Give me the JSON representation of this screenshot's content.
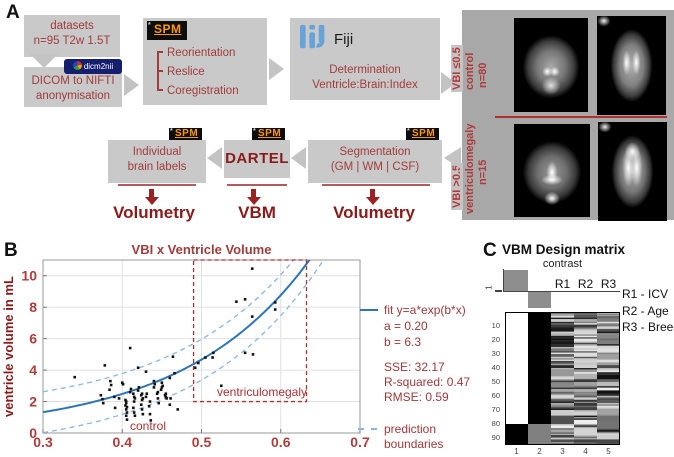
{
  "figure": {
    "panel_a_label": "A",
    "panel_b_label": "B",
    "panel_c_label": "C"
  },
  "pipeline": {
    "datasets": {
      "line1": "datasets",
      "line2": "n=95 T2w 1.5T"
    },
    "dicom": {
      "badge": "dicm2nii",
      "line1": "DICOM to NIFTI",
      "line2": "anonymisation"
    },
    "spm_logo": "SPM",
    "preprocess_steps": [
      "Reorientation",
      "Reslice",
      "Coregistration"
    ],
    "fiji": {
      "logo_text": "Fiji",
      "line1": "Determination",
      "line2": "Ventricle:Brain:Index"
    },
    "individual": {
      "line1": "Individual",
      "line2": "brain labels"
    },
    "dartel": "DARTEL",
    "segmentation": {
      "line1": "Segmentation",
      "line2": "(GM | WM | CSF)"
    },
    "outputs": [
      "Volumetry",
      "VBM",
      "Volumetry"
    ]
  },
  "mri_panel": {
    "top": {
      "vbi": "VBI ≤0.5",
      "group": "control",
      "n": "n=80"
    },
    "bottom": {
      "vbi": "VBI >0.5",
      "group": "ventriculomegaly",
      "n": "n=15"
    }
  },
  "chart_data": [
    {
      "id": "vbi-ventricle-scatter",
      "type": "scatter",
      "title": "VBI x Ventricle Volume",
      "xlabel": "",
      "ylabel": "ventricle volume in mL",
      "xlim": [
        0.3,
        0.7
      ],
      "ylim": [
        0,
        11
      ],
      "xticks": [
        0.3,
        0.4,
        0.5,
        0.6,
        0.7
      ],
      "yticks": [
        0,
        2,
        4,
        6,
        8,
        10
      ],
      "grid": true,
      "fit": {
        "a": 0.2,
        "b": 6.3
      },
      "boundary_offset": 1.3,
      "legend": {
        "fit_label": "fit y=a*exp(b*x)",
        "a_label": "a = 0.20",
        "b_label": "b = 6.3",
        "stats": [
          "SSE: 32.17",
          "R-squared: 0.47",
          "RMSE: 0.59"
        ],
        "boundary_label_1": "prediction",
        "boundary_label_2": "boundaries"
      },
      "region": {
        "x0": 0.49,
        "x1": 0.6325,
        "y0": 2.0,
        "y1": 11.0,
        "label": "ventriculomegaly"
      },
      "control_label": "control",
      "points": [
        [
          0.34,
          3.55
        ],
        [
          0.373,
          2.4
        ],
        [
          0.375,
          2.15
        ],
        [
          0.376,
          1.9
        ],
        [
          0.378,
          4.3
        ],
        [
          0.384,
          2.75
        ],
        [
          0.385,
          3.3
        ],
        [
          0.386,
          3.05
        ],
        [
          0.39,
          2.3
        ],
        [
          0.391,
          1.6
        ],
        [
          0.396,
          2.2
        ],
        [
          0.4,
          3.2
        ],
        [
          0.401,
          3.1
        ],
        [
          0.404,
          2.1
        ],
        [
          0.405,
          2.0
        ],
        [
          0.405,
          1.9
        ],
        [
          0.404,
          1.75
        ],
        [
          0.406,
          1.65
        ],
        [
          0.405,
          1.5
        ],
        [
          0.406,
          1.3
        ],
        [
          0.405,
          1.1
        ],
        [
          0.406,
          0.85
        ],
        [
          0.41,
          5.4
        ],
        [
          0.411,
          2.8
        ],
        [
          0.41,
          2.6
        ],
        [
          0.414,
          2.5
        ],
        [
          0.415,
          2.3
        ],
        [
          0.416,
          2.2
        ],
        [
          0.415,
          2.0
        ],
        [
          0.414,
          1.6
        ],
        [
          0.415,
          1.3
        ],
        [
          0.416,
          1.1
        ],
        [
          0.42,
          4.15
        ],
        [
          0.421,
          2.9
        ],
        [
          0.42,
          2.7
        ],
        [
          0.425,
          2.5
        ],
        [
          0.424,
          2.4
        ],
        [
          0.426,
          2.2
        ],
        [
          0.425,
          2.1
        ],
        [
          0.424,
          1.8
        ],
        [
          0.425,
          1.5
        ],
        [
          0.426,
          1.2
        ],
        [
          0.43,
          3.9
        ],
        [
          0.431,
          2.5
        ],
        [
          0.43,
          2.3
        ],
        [
          0.435,
          2.0
        ],
        [
          0.434,
          1.7
        ],
        [
          0.435,
          1.2
        ],
        [
          0.436,
          0.8
        ],
        [
          0.44,
          3.3
        ],
        [
          0.441,
          3.1
        ],
        [
          0.44,
          2.9
        ],
        [
          0.445,
          2.6
        ],
        [
          0.444,
          2.5
        ],
        [
          0.445,
          2.2
        ],
        [
          0.446,
          1.9
        ],
        [
          0.45,
          3.2
        ],
        [
          0.451,
          3.0
        ],
        [
          0.45,
          2.9
        ],
        [
          0.449,
          2.75
        ],
        [
          0.455,
          2.5
        ],
        [
          0.454,
          2.4
        ],
        [
          0.455,
          2.3
        ],
        [
          0.456,
          2.2
        ],
        [
          0.46,
          3.5
        ],
        [
          0.461,
          2.2
        ],
        [
          0.46,
          1.8
        ],
        [
          0.464,
          4.85
        ],
        [
          0.466,
          3.8
        ],
        [
          0.47,
          1.5
        ],
        [
          0.492,
          4.15
        ],
        [
          0.496,
          4.45
        ],
        [
          0.505,
          4.8
        ],
        [
          0.514,
          4.8
        ],
        [
          0.515,
          5.1
        ],
        [
          0.525,
          3.0
        ],
        [
          0.544,
          8.35
        ],
        [
          0.555,
          8.5
        ],
        [
          0.555,
          5.1
        ],
        [
          0.564,
          10.45
        ],
        [
          0.564,
          7.4
        ],
        [
          0.565,
          5.0
        ],
        [
          0.593,
          8.3
        ],
        [
          0.593,
          7.85
        ]
      ]
    },
    {
      "id": "vbm-design-matrix",
      "type": "heatmap",
      "title": "VBM Design matrix",
      "contrast_label": "contrast",
      "contrast_row_label": "1",
      "regressor_headers": [
        "R1",
        "R2",
        "R3"
      ],
      "legend": [
        "R1 - ICV",
        "R2 - Age",
        "R3 - Breed"
      ],
      "n_rows": 95,
      "group_split": 80,
      "yticks": [
        10,
        20,
        30,
        40,
        50,
        60,
        70,
        80,
        90
      ],
      "xticks": [
        1,
        2,
        3,
        4,
        5
      ],
      "columns": [
        {
          "name": "group-control",
          "pattern": "block",
          "top_value": 1.0,
          "bottom_value": 0.0
        },
        {
          "name": "group-ventriculomegaly",
          "pattern": "block",
          "top_value": 0.0,
          "bottom_value": 0.5
        },
        {
          "name": "R1-ICV",
          "pattern": "noise",
          "seed": 101
        },
        {
          "name": "R2-Age",
          "pattern": "noise",
          "seed": 202
        },
        {
          "name": "R3-Breed",
          "pattern": "noise",
          "seed": 303
        }
      ]
    }
  ],
  "colors": {
    "accent_red": "#a23c3c",
    "dark_red": "#8b1a1a",
    "axis_red": "#b13c3c",
    "fit_blue": "#2e75b6",
    "boundary_blue": "#8ab6e2",
    "region_red": "#b03030",
    "box_gray": "#c9c9c9",
    "panel_gray": "#a8a8a8",
    "spm_orange": "#ff9a00"
  }
}
